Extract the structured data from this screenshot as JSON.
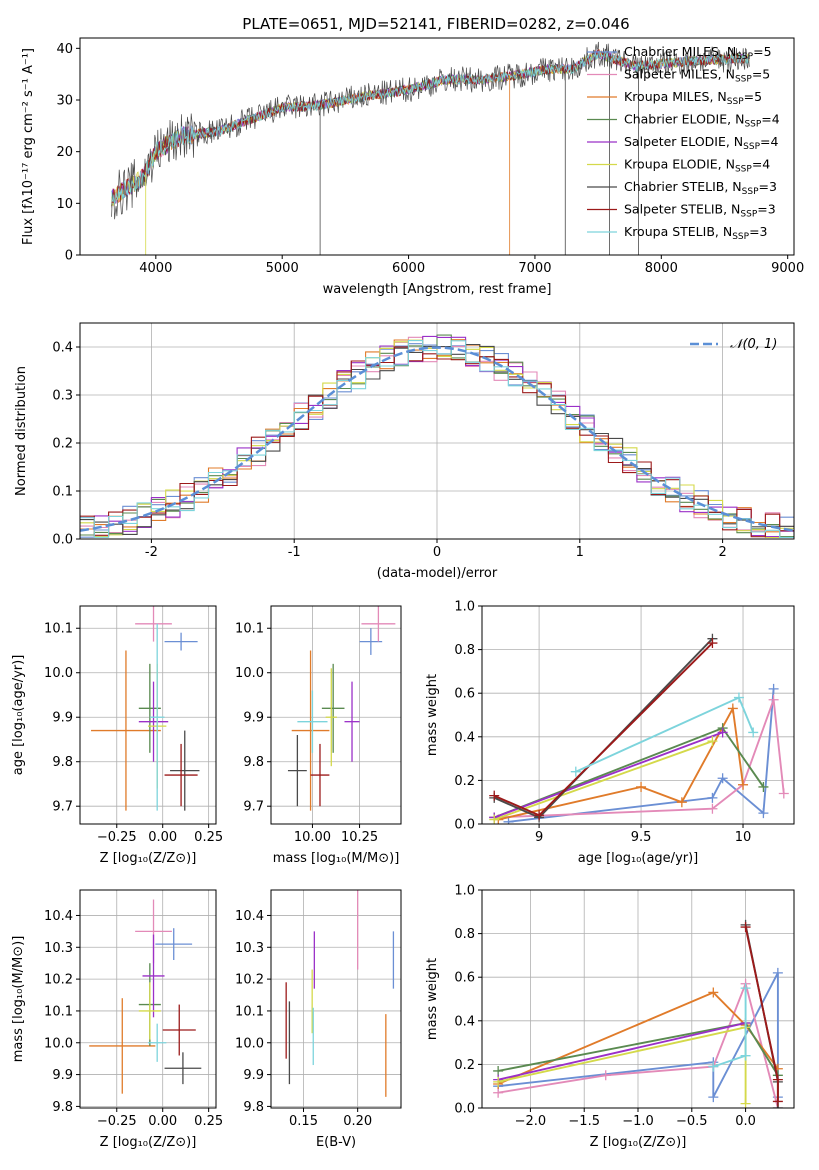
{
  "figure": {
    "title": "PLATE=0651, MJD=52141, FIBERID=0282, z=0.046"
  },
  "colors": {
    "chabrier_miles": "#6b8fd4",
    "salpeter_miles": "#e38ab8",
    "kroupa_miles": "#e07b2a",
    "chabrier_elodie": "#5a8a50",
    "salpeter_elodie": "#9b30c8",
    "kroupa_elodie": "#d4d94a",
    "chabrier_stelib": "#4a4a4a",
    "salpeter_stelib": "#9c1a1a",
    "kroupa_stelib": "#7dd4dc"
  },
  "chart_data": [
    {
      "id": "spectrum",
      "type": "line",
      "title": "PLATE=0651, MJD=52141, FIBERID=0282, z=0.046",
      "xlabel": "wavelength [Angstrom, rest frame]",
      "ylabel": "Flux [fλ10⁻¹⁷ erg cm⁻² s⁻¹ A⁻¹]",
      "xlim": [
        3400,
        9050
      ],
      "ylim": [
        0,
        42
      ],
      "xticks": [
        4000,
        5000,
        6000,
        7000,
        8000,
        9000
      ],
      "yticks": [
        0,
        10,
        20,
        30,
        40
      ],
      "grid": false,
      "legend_position": "top-right",
      "series": [
        {
          "name": "Chabrier MILES, N_SSP=5",
          "color": "#6b8fd4"
        },
        {
          "name": "Salpeter MILES, N_SSP=5",
          "color": "#e38ab8"
        },
        {
          "name": "Kroupa MILES, N_SSP=5",
          "color": "#e07b2a"
        },
        {
          "name": "Chabrier ELODIE, N_SSP=4",
          "color": "#5a8a50"
        },
        {
          "name": "Salpeter ELODIE, N_SSP=4",
          "color": "#9b30c8"
        },
        {
          "name": "Kroupa ELODIE, N_SSP=4",
          "color": "#d4d94a"
        },
        {
          "name": "Chabrier STELIB, N_SSP=3",
          "color": "#4a4a4a"
        },
        {
          "name": "Salpeter STELIB, N_SSP=3",
          "color": "#9c1a1a"
        },
        {
          "name": "Kroupa STELIB, N_SSP=3",
          "color": "#7dd4dc"
        }
      ],
      "continuum_x": [
        3650,
        3900,
        4000,
        4200,
        4500,
        5000,
        5300,
        5600,
        6000,
        6300,
        6600,
        6900,
        7100,
        7300,
        7500,
        7800,
        8200,
        8600,
        8700
      ],
      "continuum_y": [
        11,
        15,
        20,
        23,
        24,
        28.5,
        29,
        30.5,
        32,
        34,
        34,
        35,
        36,
        36,
        39,
        36.5,
        37.5,
        38,
        38
      ]
    },
    {
      "id": "residuals",
      "type": "line",
      "xlabel": "(data-model)/error",
      "ylabel": "Normed distribution",
      "xlim": [
        -2.5,
        2.5
      ],
      "ylim": [
        0,
        0.45
      ],
      "xticks": [
        -2,
        -1,
        0,
        1,
        2
      ],
      "yticks": [
        0.0,
        0.1,
        0.2,
        0.3,
        0.4
      ],
      "grid": true,
      "legend_position": "top-right",
      "legend": "𝒩(0, 1)",
      "reference": {
        "type": "normal",
        "mean": 0,
        "sigma": 1,
        "color": "#5b8fd6"
      }
    },
    {
      "id": "age_vs_Z",
      "type": "scatter",
      "xlabel": "Z [log₁₀(Z/Z⊙)]",
      "ylabel": "age  [log₁₀(age/yr)]",
      "xlim": [
        -0.45,
        0.29
      ],
      "ylim": [
        9.66,
        10.15
      ],
      "xticks": [
        -0.25,
        0.0,
        0.25
      ],
      "xticklabels": [
        "−0.25",
        "0.00",
        "0.25"
      ],
      "yticks": [
        9.7,
        9.8,
        9.9,
        10.0,
        10.1
      ],
      "grid": true,
      "points": [
        {
          "x": 0.1,
          "xerr": 0.09,
          "y": 10.07,
          "yerr": 0.02,
          "color": "#6b8fd4"
        },
        {
          "x": -0.05,
          "xerr": 0.1,
          "y": 10.11,
          "yerr": 0.04,
          "color": "#e38ab8"
        },
        {
          "x": -0.2,
          "xerr": 0.19,
          "y": 9.87,
          "yerr": 0.18,
          "color": "#e07b2a"
        },
        {
          "x": -0.07,
          "xerr": 0.06,
          "y": 9.92,
          "yerr": 0.1,
          "color": "#5a8a50"
        },
        {
          "x": -0.05,
          "xerr": 0.08,
          "y": 9.89,
          "yerr": 0.09,
          "color": "#9b30c8"
        },
        {
          "x": -0.03,
          "xerr": 0.05,
          "y": 9.88,
          "yerr": 0.14,
          "color": "#d4d94a"
        },
        {
          "x": 0.12,
          "xerr": 0.08,
          "y": 9.78,
          "yerr": 0.09,
          "color": "#4a4a4a"
        },
        {
          "x": 0.1,
          "xerr": 0.09,
          "y": 9.77,
          "yerr": 0.07,
          "color": "#9c1a1a"
        },
        {
          "x": -0.03,
          "xerr": 0.04,
          "y": 9.9,
          "yerr": 0.21,
          "color": "#7dd4dc"
        }
      ]
    },
    {
      "id": "age_vs_mass",
      "type": "scatter",
      "xlabel": "mass [log₁₀(M/M⊙)]",
      "ylabel": "",
      "xlim": [
        9.78,
        10.47
      ],
      "ylim": [
        9.66,
        10.15
      ],
      "xticks": [
        10.0,
        10.25
      ],
      "xticklabels": [
        "10.00",
        "10.25"
      ],
      "yticks": [
        9.7,
        9.8,
        9.9,
        10.0,
        10.1
      ],
      "grid": true,
      "points": [
        {
          "x": 10.31,
          "xerr": 0.06,
          "y": 10.07,
          "yerr": 0.03,
          "color": "#6b8fd4"
        },
        {
          "x": 10.35,
          "xerr": 0.09,
          "y": 10.11,
          "yerr": 0.04,
          "color": "#e38ab8"
        },
        {
          "x": 9.99,
          "xerr": 0.1,
          "y": 9.87,
          "yerr": 0.18,
          "color": "#e07b2a"
        },
        {
          "x": 10.11,
          "xerr": 0.06,
          "y": 9.92,
          "yerr": 0.1,
          "color": "#5a8a50"
        },
        {
          "x": 10.21,
          "xerr": 0.04,
          "y": 9.89,
          "yerr": 0.09,
          "color": "#9b30c8"
        },
        {
          "x": 10.1,
          "xerr": 0.03,
          "y": 9.9,
          "yerr": 0.11,
          "color": "#d4d94a"
        },
        {
          "x": 9.92,
          "xerr": 0.05,
          "y": 9.78,
          "yerr": 0.08,
          "color": "#4a4a4a"
        },
        {
          "x": 10.04,
          "xerr": 0.05,
          "y": 9.77,
          "yerr": 0.07,
          "color": "#9c1a1a"
        },
        {
          "x": 10.0,
          "xerr": 0.08,
          "y": 9.89,
          "yerr": 0.07,
          "color": "#7dd4dc"
        }
      ]
    },
    {
      "id": "massweight_vs_age",
      "type": "line",
      "xlabel": "age  [log₁₀(age/yr)]",
      "ylabel": "mass weight",
      "xlim": [
        8.72,
        10.25
      ],
      "ylim": [
        0,
        1.0
      ],
      "xticks": [
        9.0,
        9.5,
        10.0
      ],
      "yticks": [
        0.0,
        0.2,
        0.4,
        0.6,
        0.8,
        1.0
      ],
      "grid": true,
      "series": [
        {
          "color": "#6b8fd4",
          "x": [
            8.85,
            9.85,
            9.9,
            10.1,
            10.15
          ],
          "y": [
            0.01,
            0.12,
            0.21,
            0.05,
            0.62
          ]
        },
        {
          "color": "#e38ab8",
          "x": [
            8.78,
            9.85,
            10.0,
            10.15,
            10.2
          ],
          "y": [
            0.03,
            0.07,
            0.18,
            0.57,
            0.14
          ]
        },
        {
          "color": "#e07b2a",
          "x": [
            8.8,
            9.5,
            9.7,
            9.95,
            10.0
          ],
          "y": [
            0.02,
            0.17,
            0.1,
            0.53,
            0.18
          ]
        },
        {
          "color": "#5a8a50",
          "x": [
            8.78,
            9.9,
            10.1
          ],
          "y": [
            0.03,
            0.44,
            0.17
          ]
        },
        {
          "color": "#9b30c8",
          "x": [
            8.78,
            9.9
          ],
          "y": [
            0.03,
            0.42
          ]
        },
        {
          "color": "#d4d94a",
          "x": [
            8.78,
            9.85
          ],
          "y": [
            0.02,
            0.38
          ]
        },
        {
          "color": "#4a4a4a",
          "x": [
            8.78,
            9.0,
            9.85
          ],
          "y": [
            0.12,
            0.03,
            0.85
          ]
        },
        {
          "color": "#9c1a1a",
          "x": [
            8.78,
            9.0,
            9.85
          ],
          "y": [
            0.13,
            0.04,
            0.83
          ]
        },
        {
          "color": "#7dd4dc",
          "x": [
            9.18,
            9.98,
            10.05
          ],
          "y": [
            0.24,
            0.58,
            0.42
          ]
        }
      ]
    },
    {
      "id": "mass_vs_Z",
      "type": "scatter",
      "xlabel": "Z [log₁₀(Z/Z⊙)]",
      "ylabel": "mass [log₁₀(M/M⊙)]",
      "xlim": [
        -0.45,
        0.29
      ],
      "ylim": [
        9.795,
        10.48
      ],
      "xticks": [
        -0.25,
        0.0,
        0.25
      ],
      "xticklabels": [
        "−0.25",
        "0.00",
        "0.25"
      ],
      "yticks": [
        9.8,
        9.9,
        10.0,
        10.1,
        10.2,
        10.3,
        10.4
      ],
      "grid": true,
      "points": [
        {
          "x": 0.06,
          "xerr": 0.1,
          "y": 10.31,
          "yerr": 0.05,
          "color": "#6b8fd4"
        },
        {
          "x": -0.05,
          "xerr": 0.1,
          "y": 10.35,
          "yerr": 0.1,
          "color": "#e38ab8"
        },
        {
          "x": -0.22,
          "xerr": 0.18,
          "y": 9.99,
          "yerr": 0.15,
          "color": "#e07b2a"
        },
        {
          "x": -0.07,
          "xerr": 0.06,
          "y": 10.12,
          "yerr": 0.13,
          "color": "#5a8a50"
        },
        {
          "x": -0.05,
          "xerr": 0.06,
          "y": 10.21,
          "yerr": 0.13,
          "color": "#9b30c8"
        },
        {
          "x": -0.07,
          "xerr": 0.06,
          "y": 10.1,
          "yerr": 0.09,
          "color": "#d4d94a"
        },
        {
          "x": 0.11,
          "xerr": 0.1,
          "y": 9.92,
          "yerr": 0.05,
          "color": "#4a4a4a"
        },
        {
          "x": 0.09,
          "xerr": 0.09,
          "y": 10.04,
          "yerr": 0.08,
          "color": "#9c1a1a"
        },
        {
          "x": -0.03,
          "xerr": 0.05,
          "y": 10.0,
          "yerr": 0.06,
          "color": "#7dd4dc"
        }
      ]
    },
    {
      "id": "mass_vs_EBV",
      "type": "scatter",
      "xlabel": "E(B-V)",
      "ylabel": "",
      "xlim": [
        0.12,
        0.24
      ],
      "ylim": [
        9.795,
        10.48
      ],
      "xticks": [
        0.15,
        0.2
      ],
      "xticklabels": [
        "0.15",
        "0.20"
      ],
      "yticks": [
        9.8,
        9.9,
        10.0,
        10.1,
        10.2,
        10.3,
        10.4
      ],
      "grid": true,
      "points": [
        {
          "x": 0.233,
          "y": 10.26,
          "yerr": 0.09,
          "color": "#6b8fd4"
        },
        {
          "x": 0.2,
          "y": 10.36,
          "yerr": 0.13,
          "color": "#e38ab8"
        },
        {
          "x": 0.226,
          "y": 9.96,
          "yerr": 0.13,
          "color": "#e07b2a"
        },
        {
          "x": 0.16,
          "y": 10.26,
          "yerr": 0.09,
          "color": "#9b30c8"
        },
        {
          "x": 0.158,
          "y": 10.13,
          "yerr": 0.1,
          "color": "#d4d94a"
        },
        {
          "x": 0.137,
          "y": 10.0,
          "yerr": 0.13,
          "color": "#4a4a4a"
        },
        {
          "x": 0.134,
          "y": 10.07,
          "yerr": 0.12,
          "color": "#9c1a1a"
        },
        {
          "x": 0.159,
          "y": 10.02,
          "yerr": 0.09,
          "color": "#7dd4dc"
        }
      ]
    },
    {
      "id": "massweight_vs_Z",
      "type": "line",
      "xlabel": "Z [log₁₀(Z/Z⊙)]",
      "ylabel": "mass weight",
      "xlim": [
        -2.45,
        0.45
      ],
      "ylim": [
        0,
        1.0
      ],
      "xticks": [
        -2.0,
        -1.5,
        -1.0,
        -0.5,
        0.0
      ],
      "xticklabels": [
        "−2.0",
        "−1.5",
        "−1.0",
        "−0.5",
        "0.0"
      ],
      "yticks": [
        0.0,
        0.2,
        0.4,
        0.6,
        0.8,
        1.0
      ],
      "grid": true,
      "series": [
        {
          "color": "#6b8fd4",
          "x": [
            -2.3,
            -0.3,
            -0.3,
            0.3,
            0.3
          ],
          "y": [
            0.1,
            0.21,
            0.05,
            0.62,
            0.05
          ]
        },
        {
          "color": "#e38ab8",
          "x": [
            -2.3,
            -1.3,
            -0.3,
            0.0,
            0.3
          ],
          "y": [
            0.07,
            0.15,
            0.19,
            0.57,
            0.0
          ]
        },
        {
          "color": "#e07b2a",
          "x": [
            -2.3,
            -0.3,
            0.0,
            0.3
          ],
          "y": [
            0.11,
            0.53,
            0.38,
            0.18
          ]
        },
        {
          "color": "#5a8a50",
          "x": [
            -2.3,
            0.0,
            0.3
          ],
          "y": [
            0.17,
            0.39,
            0.15
          ]
        },
        {
          "color": "#9b30c8",
          "x": [
            -2.3,
            0.0
          ],
          "y": [
            0.13,
            0.39
          ]
        },
        {
          "color": "#d4d94a",
          "x": [
            -2.3,
            0.0,
            0.0
          ],
          "y": [
            0.12,
            0.37,
            0.02
          ]
        },
        {
          "color": "#4a4a4a",
          "x": [
            0.0,
            0.3,
            0.3
          ],
          "y": [
            0.84,
            0.12,
            0.0
          ]
        },
        {
          "color": "#9c1a1a",
          "x": [
            0.0,
            0.3,
            0.3
          ],
          "y": [
            0.83,
            0.13,
            0.03
          ]
        },
        {
          "color": "#7dd4dc",
          "x": [
            -0.3,
            0.0,
            0.0
          ],
          "y": [
            0.19,
            0.24,
            0.55
          ]
        }
      ]
    }
  ]
}
